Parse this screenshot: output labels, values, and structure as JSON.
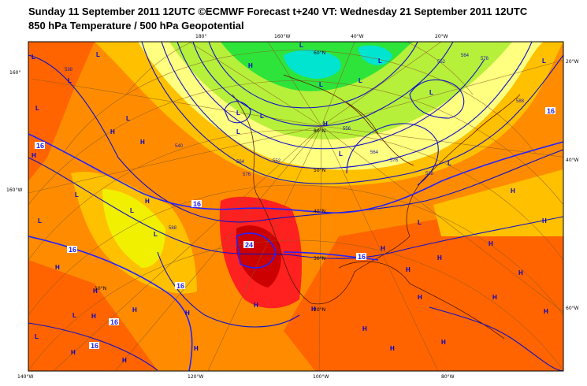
{
  "title_line1": "Sunday 11 September 2011 12UTC ©ECMWF Forecast t+240 VT: Wednesday 21 September 2011 12UTC",
  "title_line2": "850 hPa Temperature / 500 hPa Geopotential",
  "colors": {
    "cold_green": "#2ee43a",
    "cyan": "#00e4d0",
    "green_yellow": "#b6f03a",
    "yellow": "#f0f000",
    "light_yellow": "#ffff80",
    "orange_light": "#ffc000",
    "orange": "#ff8c00",
    "orange_dark": "#ff6400",
    "red": "#ff2020",
    "dark_red": "#cc0000",
    "contour": "#1010c8",
    "land_outline": "#5a1a00"
  },
  "tick_labels": {
    "top": [
      "180°",
      "160°W",
      "40°W",
      "20°W"
    ],
    "left": [
      "160°",
      "160°W"
    ],
    "right": [
      "20°W",
      "40°W",
      "60°W"
    ],
    "bottom": [
      "140°W",
      "120°W",
      "100°W",
      "80°W"
    ],
    "interior": [
      "80°N",
      "60°N",
      "50°N",
      "40°N",
      "30°N",
      "20°N",
      "10°N"
    ]
  },
  "isotherm_labels_16": [
    "16",
    "16",
    "16",
    "16",
    "16",
    "16",
    "16",
    "16"
  ],
  "isotherm_label_24": "24",
  "geopotential_labels": [
    "540",
    "552",
    "564",
    "576",
    "588",
    "552",
    "564",
    "576",
    "588",
    "556",
    "564",
    "576",
    "588",
    "588"
  ],
  "pressure_markers": [
    "L",
    "L",
    "L",
    "L",
    "L",
    "L",
    "L",
    "L",
    "L",
    "L",
    "L",
    "L",
    "L",
    "L",
    "L",
    "L",
    "L",
    "L",
    "L",
    "L",
    "L",
    "L",
    "L",
    "H",
    "H",
    "H",
    "H",
    "H",
    "H",
    "H",
    "H",
    "H",
    "H",
    "H",
    "H",
    "H",
    "H",
    "H",
    "H",
    "H",
    "H",
    "H",
    "H",
    "H",
    "H",
    "H",
    "H",
    "H",
    "H",
    "H",
    "H",
    "H"
  ]
}
